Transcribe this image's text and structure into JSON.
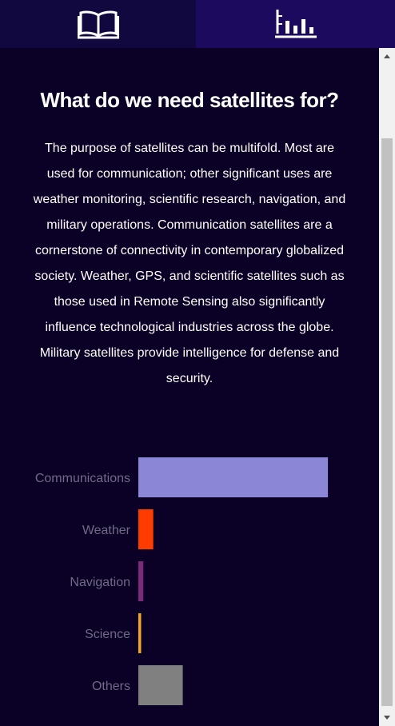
{
  "tabs": {
    "story_icon": "book-icon",
    "chart_icon": "bar-chart-icon"
  },
  "main": {
    "title": "What do we need satellites for?",
    "paragraph": "The purpose of satellites can be multifold. Most are used for communication; other significant uses are weather monitoring, scientific research, navigation, and military operations. Communication satellites are a cornerstone of connectivity in contemporary globalized society. Weather, GPS, and scientific satellites such as those used in Remote Sensing also significantly influence technological industries across the globe. Military satellites provide intelligence for defense and security."
  },
  "chart_data": {
    "type": "bar",
    "orientation": "horizontal",
    "categories": [
      "Communications",
      "Weather",
      "Navigation",
      "Science",
      "Others"
    ],
    "values": [
      6100,
      480,
      160,
      90,
      1430
    ],
    "colors": [
      "#8b86d6",
      "#ff3c00",
      "#7b2a7a",
      "#f5a623",
      "#808080"
    ],
    "xlim": [
      0,
      6200
    ],
    "xticks": [
      0,
      1500,
      3000,
      4500,
      6000
    ],
    "grid": false,
    "title": "",
    "xlabel": "",
    "ylabel": ""
  },
  "colors": {
    "background": "#0b0127",
    "tab_active": "#1b0a5e",
    "tab_inactive": "#120840",
    "axis_text": "#6f6a85"
  }
}
